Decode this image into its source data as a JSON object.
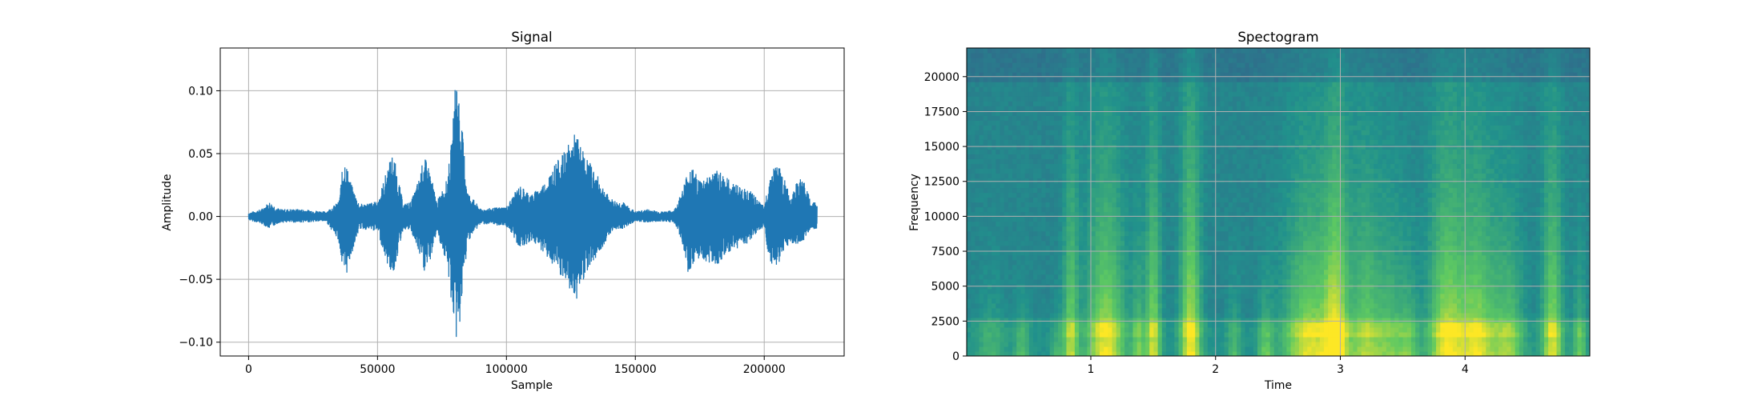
{
  "chart_data": [
    {
      "type": "line",
      "title": "Signal",
      "xlabel": "Sample",
      "ylabel": "Amplitude",
      "xlim": [
        -11000,
        231000
      ],
      "ylim": [
        -0.111,
        0.134
      ],
      "grid": true,
      "color": "#1f77b4",
      "x_ticks": [
        0,
        50000,
        100000,
        150000,
        200000
      ],
      "x_tick_labels": [
        "0",
        "50000",
        "100000",
        "150000",
        "200000"
      ],
      "y_ticks": [
        -0.1,
        -0.05,
        0.0,
        0.05,
        0.1
      ],
      "y_tick_labels": [
        "−0.10",
        "−0.05",
        "0.00",
        "0.05",
        "0.10"
      ],
      "series": [
        {
          "sample_range": [
            0,
            220500
          ],
          "envelope_x": [
            0,
            5000,
            8000,
            12000,
            20000,
            30000,
            35000,
            37000,
            40000,
            43000,
            50000,
            54000,
            56000,
            60000,
            63000,
            66000,
            68000,
            70000,
            73000,
            77000,
            79000,
            80500,
            82000,
            85000,
            90000,
            100000,
            105000,
            110000,
            115000,
            118000,
            122000,
            127000,
            129000,
            132000,
            136000,
            140000,
            143000,
            145000,
            150000,
            155000,
            160000,
            165000,
            168000,
            171000,
            175000,
            180000,
            183000,
            186000,
            190000,
            195000,
            198000,
            200000,
            202000,
            205000,
            210000,
            213000,
            215000,
            218000,
            220500
          ],
          "envelope_upper": [
            0.003,
            0.006,
            0.012,
            0.006,
            0.006,
            0.004,
            0.012,
            0.05,
            0.025,
            0.01,
            0.012,
            0.04,
            0.052,
            0.01,
            0.012,
            0.03,
            0.048,
            0.04,
            0.012,
            0.03,
            0.065,
            0.122,
            0.09,
            0.02,
            0.006,
            0.008,
            0.025,
            0.018,
            0.028,
            0.04,
            0.05,
            0.068,
            0.055,
            0.045,
            0.03,
            0.015,
            0.012,
            0.012,
            0.004,
            0.006,
            0.004,
            0.005,
            0.02,
            0.042,
            0.03,
            0.035,
            0.038,
            0.03,
            0.025,
            0.02,
            0.012,
            0.008,
            0.032,
            0.045,
            0.018,
            0.028,
            0.032,
            0.012,
            0.012
          ],
          "envelope_lower": [
            -0.003,
            -0.006,
            -0.01,
            -0.005,
            -0.005,
            -0.004,
            -0.02,
            -0.055,
            -0.03,
            -0.01,
            -0.012,
            -0.04,
            -0.048,
            -0.01,
            -0.012,
            -0.03,
            -0.045,
            -0.04,
            -0.012,
            -0.04,
            -0.075,
            -0.1,
            -0.085,
            -0.02,
            -0.006,
            -0.008,
            -0.025,
            -0.02,
            -0.03,
            -0.04,
            -0.052,
            -0.068,
            -0.055,
            -0.04,
            -0.03,
            -0.014,
            -0.01,
            -0.01,
            -0.004,
            -0.005,
            -0.004,
            -0.005,
            -0.02,
            -0.05,
            -0.035,
            -0.038,
            -0.038,
            -0.03,
            -0.025,
            -0.02,
            -0.012,
            -0.008,
            -0.04,
            -0.04,
            -0.02,
            -0.025,
            -0.02,
            -0.01,
            -0.01
          ]
        }
      ]
    },
    {
      "type": "heatmap",
      "title": "Spectogram",
      "xlabel": "Time",
      "ylabel": "Frequency",
      "xlim": [
        0.005,
        5.0
      ],
      "ylim": [
        0,
        22050
      ],
      "grid": true,
      "colormap": "viridis",
      "x_ticks": [
        1,
        2,
        3,
        4
      ],
      "x_tick_labels": [
        "1",
        "2",
        "3",
        "4"
      ],
      "y_ticks": [
        0,
        2500,
        5000,
        7500,
        10000,
        12500,
        15000,
        17500,
        20000
      ],
      "y_tick_labels": [
        "0",
        "2500",
        "5000",
        "7500",
        "10000",
        "12500",
        "15000",
        "17500",
        "20000"
      ],
      "energy_bursts": [
        {
          "time": 0.2,
          "width": 0.12,
          "strength": 0.35,
          "top_freq": 6000
        },
        {
          "time": 0.45,
          "width": 0.06,
          "strength": 0.45,
          "top_freq": 5000
        },
        {
          "time": 0.73,
          "width": 0.05,
          "strength": 0.35,
          "top_freq": 4000
        },
        {
          "time": 0.84,
          "width": 0.06,
          "strength": 0.8,
          "top_freq": 17000
        },
        {
          "time": 1.12,
          "width": 0.15,
          "strength": 1.0,
          "top_freq": 16000
        },
        {
          "time": 1.38,
          "width": 0.05,
          "strength": 0.6,
          "top_freq": 9000
        },
        {
          "time": 1.5,
          "width": 0.06,
          "strength": 0.9,
          "top_freq": 18000
        },
        {
          "time": 1.8,
          "width": 0.08,
          "strength": 1.05,
          "top_freq": 20000
        },
        {
          "time": 2.15,
          "width": 0.06,
          "strength": 0.4,
          "top_freq": 6000
        },
        {
          "time": 2.4,
          "width": 0.06,
          "strength": 0.55,
          "top_freq": 6000
        },
        {
          "time": 2.75,
          "width": 0.2,
          "strength": 0.95,
          "top_freq": 14000
        },
        {
          "time": 2.97,
          "width": 0.1,
          "strength": 1.05,
          "top_freq": 18000
        },
        {
          "time": 3.2,
          "width": 0.12,
          "strength": 0.75,
          "top_freq": 15000
        },
        {
          "time": 3.4,
          "width": 0.12,
          "strength": 0.6,
          "top_freq": 12000
        },
        {
          "time": 3.55,
          "width": 0.08,
          "strength": 0.5,
          "top_freq": 8000
        },
        {
          "time": 3.85,
          "width": 0.14,
          "strength": 1.0,
          "top_freq": 17000
        },
        {
          "time": 4.1,
          "width": 0.15,
          "strength": 0.95,
          "top_freq": 15000
        },
        {
          "time": 4.35,
          "width": 0.12,
          "strength": 0.7,
          "top_freq": 12000
        },
        {
          "time": 4.7,
          "width": 0.08,
          "strength": 0.95,
          "top_freq": 17000
        },
        {
          "time": 4.92,
          "width": 0.05,
          "strength": 0.6,
          "top_freq": 8000
        }
      ]
    }
  ]
}
